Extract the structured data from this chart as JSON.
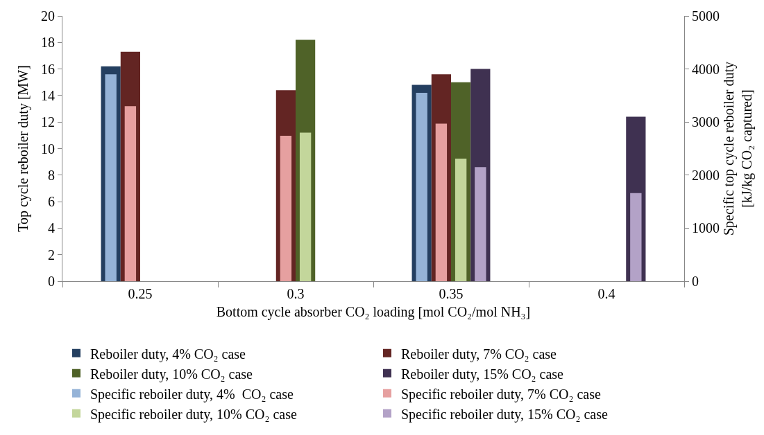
{
  "chart_data": {
    "type": "bar",
    "xlabel": "Bottom cycle absorber CO₂ loading [mol CO₂/mol NH₃]",
    "ylabel": "Top cycle reboiler duty [MW]",
    "y2label": "Specific top cycle reboiler duty\n[kJ/kg CO₂ captured]",
    "categories": [
      "0.25",
      "0.3",
      "0.35",
      "0.4"
    ],
    "series": [
      {
        "name": "Reboiler duty, 4% CO₂ case",
        "color": "#243f60",
        "values": [
          16.2,
          null,
          14.8,
          null
        ]
      },
      {
        "name": "Reboiler duty, 7% CO₂ case",
        "color": "#632523",
        "values": [
          17.3,
          14.4,
          15.6,
          null
        ]
      },
      {
        "name": "Reboiler duty, 10% CO₂ case",
        "color": "#4f6228",
        "values": [
          null,
          18.2,
          15.0,
          null
        ]
      },
      {
        "name": "Reboiler duty, 15% CO₂ case",
        "color": "#3f3151",
        "values": [
          null,
          null,
          16.0,
          12.4
        ]
      },
      {
        "name": "Specific reboiler duty, 4%  CO₂ case",
        "color": "#95b3d7",
        "axis": "y2",
        "values": [
          3900,
          null,
          3550,
          null
        ]
      },
      {
        "name": "Specific reboiler duty, 7% CO₂ case",
        "color": "#e6a0a0",
        "axis": "y2",
        "values": [
          3300,
          2740,
          2970,
          null
        ]
      },
      {
        "name": "Specific reboiler duty, 10% CO₂ case",
        "color": "#c3d69b",
        "axis": "y2",
        "values": [
          null,
          2800,
          2310,
          null
        ]
      },
      {
        "name": "Specific reboiler duty, 15% CO₂ case",
        "color": "#b3a2c7",
        "axis": "y2",
        "values": [
          null,
          null,
          2150,
          1660
        ]
      }
    ],
    "ylim": [
      0,
      20
    ],
    "yticks": [
      0,
      2,
      4,
      6,
      8,
      10,
      12,
      14,
      16,
      18,
      20
    ],
    "y2lim": [
      0,
      5000
    ],
    "y2ticks": [
      0,
      1000,
      2000,
      3000,
      4000,
      5000
    ],
    "grid": false,
    "legend": "bottom"
  }
}
